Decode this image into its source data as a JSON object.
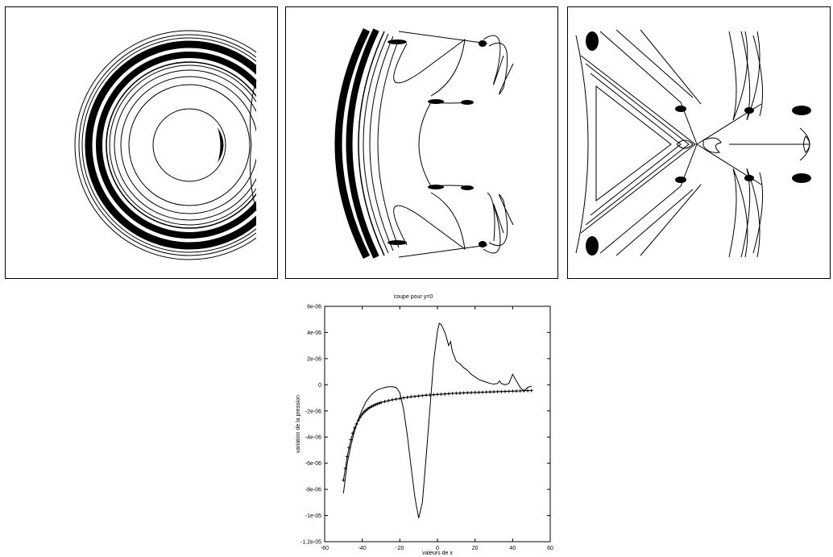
{
  "chart_data": {
    "type": "line",
    "title": "coupe pour y=0",
    "xlabel": "valeurs de x",
    "ylabel": "variation de la pression",
    "xlim": [
      -60,
      60
    ],
    "ylim": [
      -1.2e-05,
      6e-06
    ],
    "x_ticks": [
      "-60",
      "-40",
      "-20",
      "0",
      "20",
      "40",
      "60"
    ],
    "y_ticks": [
      "-1.2e-05",
      "-1e-05",
      "-8e-06",
      "-6e-06",
      "-4e-06",
      "-2e-06",
      "0",
      "2e-06",
      "4e-06",
      "6e-06"
    ],
    "grid": false,
    "series": [
      {
        "style": "line",
        "color": "#000000",
        "x": [
          -50,
          -48,
          -46,
          -44,
          -42,
          -40,
          -38,
          -36,
          -34,
          -32,
          -30,
          -28,
          -26,
          -24,
          -22,
          -20,
          -18,
          -16,
          -14,
          -12,
          -10,
          -8,
          -6,
          -4,
          -2,
          0,
          1,
          2,
          4,
          6,
          7,
          8,
          10,
          12,
          14,
          16,
          18,
          20,
          22,
          24,
          26,
          28,
          30,
          32,
          33,
          34,
          36,
          38,
          40,
          42,
          44,
          46,
          48,
          50
        ],
        "y": [
          -8.3e-06,
          -6e-06,
          -4.6e-06,
          -3.5e-06,
          -2.6e-06,
          -1.9e-06,
          -1.3e-06,
          -9e-07,
          -6e-07,
          -4e-07,
          -3e-07,
          -2e-07,
          -1.5e-07,
          -1.5e-07,
          -2e-07,
          -6e-07,
          -1.9e-06,
          -3.9e-06,
          -6.3e-06,
          -8.6e-06,
          -1.02e-05,
          -9e-06,
          -5.5e-06,
          -1.8e-06,
          1.8e-06,
          4.1e-06,
          4.7e-06,
          4.6e-06,
          4e-06,
          3e-06,
          3.3e-06,
          2.5e-06,
          1.8e-06,
          1.6e-06,
          1.3e-06,
          1.1e-06,
          8e-07,
          6e-07,
          4e-07,
          3e-07,
          2e-07,
          1e-07,
          5e-08,
          1e-07,
          3e-07,
          1e-07,
          0.0,
          1e-07,
          8e-07,
          3e-07,
          -2e-07,
          -5e-07,
          -2e-07,
          -1e-07
        ]
      },
      {
        "style": "crosses",
        "color": "#000000",
        "x": [
          -50,
          -49,
          -48,
          -47,
          -46,
          -45,
          -44,
          -43,
          -42,
          -41,
          -40,
          -39,
          -38,
          -37,
          -36,
          -35,
          -34,
          -33,
          -32,
          -31,
          -30,
          -28,
          -26,
          -24,
          -22,
          -20,
          -18,
          -16,
          -14,
          -12,
          -10,
          -8,
          -6,
          -4,
          -2,
          0,
          2,
          4,
          6,
          8,
          10,
          12,
          14,
          16,
          18,
          20,
          22,
          24,
          26,
          28,
          30,
          32,
          34,
          36,
          38,
          40,
          42,
          44,
          46,
          48,
          50
        ],
        "y": [
          -7.3e-06,
          -6.4e-06,
          -5.5e-06,
          -4.8e-06,
          -4.2e-06,
          -3.7e-06,
          -3.3e-06,
          -3e-06,
          -2.7e-06,
          -2.45e-06,
          -2.25e-06,
          -2.08e-06,
          -1.95e-06,
          -1.84e-06,
          -1.74e-06,
          -1.66e-06,
          -1.59e-06,
          -1.52e-06,
          -1.46e-06,
          -1.41e-06,
          -1.36e-06,
          -1.28e-06,
          -1.21e-06,
          -1.15e-06,
          -1.1e-06,
          -1.05e-06,
          -1e-06,
          -9.6e-07,
          -9.2e-07,
          -8.9e-07,
          -8.6e-07,
          -8.3e-07,
          -8e-07,
          -7.8e-07,
          -7.6e-07,
          -7.4e-07,
          -7.2e-07,
          -7e-07,
          -6.8e-07,
          -6.6e-07,
          -6.5e-07,
          -6.4e-07,
          -6.2e-07,
          -6.1e-07,
          -6e-07,
          -5.9e-07,
          -5.8e-07,
          -5.7e-07,
          -5.6e-07,
          -5.5e-07,
          -5.4e-07,
          -5.3e-07,
          -5.2e-07,
          -5.1e-07,
          -5e-07,
          -4.9e-07,
          -4.8e-07,
          -4.7e-07,
          -4.6e-07,
          -4.5e-07,
          -4.4e-07
        ]
      }
    ]
  }
}
